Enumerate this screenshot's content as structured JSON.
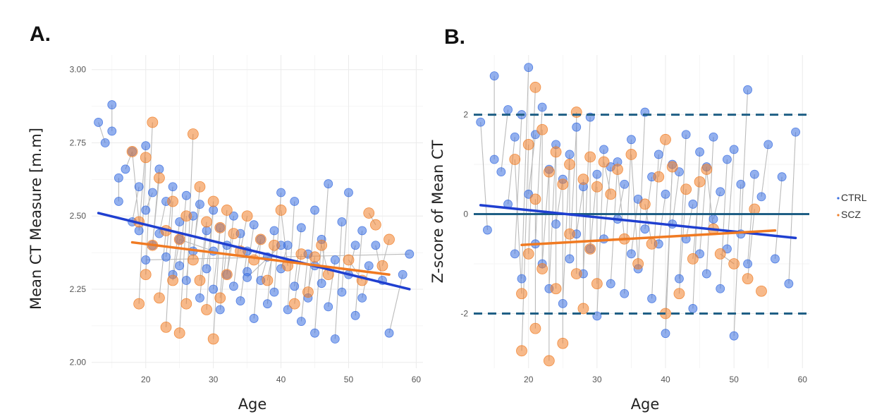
{
  "colors": {
    "CTRL": "#3b6fe0",
    "SCZ": "#f0802a",
    "CTRL_fit": "#1f3fd0",
    "SCZ_fit": "#f07a22",
    "ref": "#1f5f85",
    "link": "#bbbbbb",
    "grid": "#ebebeb"
  },
  "legend": {
    "items": [
      {
        "key": "CTRL",
        "label": "CTRL"
      },
      {
        "key": "SCZ",
        "label": "SCZ"
      }
    ],
    "placement": "right"
  },
  "chart_data": [
    {
      "type": "scatter",
      "panel_label": "A.",
      "xlabel": "Age",
      "ylabel": "Mean CT Measure [m.m]",
      "xlim": [
        12,
        61
      ],
      "ylim": [
        1.98,
        3.05
      ],
      "xticks": [
        "20",
        "30",
        "40",
        "50",
        "60"
      ],
      "yticks": [
        "2.00",
        "2.25",
        "2.50",
        "2.75",
        "3.00"
      ],
      "grid": true,
      "series": [
        {
          "name": "CTRL",
          "x": [
            13,
            14,
            15,
            15,
            16,
            16,
            17,
            18,
            18,
            19,
            19,
            20,
            20,
            21,
            21,
            22,
            22,
            23,
            23,
            24,
            24,
            25,
            25,
            26,
            26,
            27,
            27,
            28,
            28,
            29,
            29,
            30,
            30,
            31,
            31,
            32,
            32,
            33,
            33,
            34,
            34,
            35,
            35,
            36,
            36,
            37,
            37,
            38,
            38,
            39,
            39,
            40,
            40,
            41,
            41,
            42,
            42,
            43,
            43,
            44,
            44,
            45,
            45,
            46,
            46,
            47,
            47,
            48,
            48,
            49,
            49,
            50,
            50,
            51,
            51,
            52,
            52,
            53,
            54,
            55,
            56,
            58,
            59,
            20,
            25,
            30,
            35,
            40,
            45
          ],
          "y": [
            2.82,
            2.75,
            2.88,
            2.79,
            2.63,
            2.55,
            2.66,
            2.72,
            2.48,
            2.6,
            2.45,
            2.74,
            2.52,
            2.58,
            2.4,
            2.66,
            2.44,
            2.55,
            2.36,
            2.6,
            2.3,
            2.48,
            2.33,
            2.57,
            2.28,
            2.5,
            2.38,
            2.54,
            2.22,
            2.45,
            2.32,
            2.52,
            2.25,
            2.46,
            2.18,
            2.4,
            2.3,
            2.5,
            2.26,
            2.44,
            2.21,
            2.38,
            2.31,
            2.47,
            2.15,
            2.42,
            2.28,
            2.36,
            2.2,
            2.45,
            2.24,
            2.58,
            2.32,
            2.4,
            2.18,
            2.55,
            2.26,
            2.46,
            2.14,
            2.37,
            2.22,
            2.52,
            2.1,
            2.42,
            2.27,
            2.61,
            2.19,
            2.35,
            2.08,
            2.48,
            2.24,
            2.58,
            2.3,
            2.4,
            2.16,
            2.45,
            2.22,
            2.33,
            2.4,
            2.28,
            2.1,
            2.3,
            2.37,
            2.35,
            2.42,
            2.38,
            2.29,
            2.4,
            2.33
          ]
        },
        {
          "name": "SCZ",
          "x": [
            18,
            19,
            19,
            20,
            20,
            21,
            21,
            22,
            22,
            23,
            23,
            24,
            24,
            25,
            25,
            26,
            26,
            27,
            27,
            28,
            28,
            29,
            29,
            30,
            30,
            31,
            31,
            32,
            32,
            33,
            34,
            35,
            36,
            37,
            38,
            39,
            40,
            41,
            42,
            43,
            44,
            45,
            46,
            47,
            50,
            52,
            53,
            54,
            55,
            56
          ],
          "y": [
            2.72,
            2.48,
            2.2,
            2.7,
            2.3,
            2.82,
            2.4,
            2.63,
            2.22,
            2.45,
            2.12,
            2.55,
            2.28,
            2.42,
            2.1,
            2.5,
            2.2,
            2.78,
            2.35,
            2.6,
            2.28,
            2.48,
            2.18,
            2.55,
            2.08,
            2.46,
            2.22,
            2.52,
            2.3,
            2.44,
            2.38,
            2.5,
            2.35,
            2.42,
            2.28,
            2.4,
            2.52,
            2.33,
            2.2,
            2.37,
            2.24,
            2.36,
            2.4,
            2.3,
            2.35,
            2.28,
            2.51,
            2.47,
            2.33,
            2.42
          ]
        }
      ],
      "fits": [
        {
          "name": "CTRL",
          "x": [
            13,
            59
          ],
          "y": [
            2.51,
            2.25
          ]
        },
        {
          "name": "SCZ",
          "x": [
            18,
            56
          ],
          "y": [
            2.41,
            2.3
          ]
        }
      ]
    },
    {
      "type": "scatter",
      "panel_label": "B.",
      "xlabel": "Age",
      "ylabel": "Z-score of Mean CT",
      "xlim": [
        12,
        61
      ],
      "ylim": [
        -3.1,
        3.2
      ],
      "xticks": [
        "20",
        "30",
        "40",
        "50",
        "60"
      ],
      "yticks": [
        "-2",
        "0",
        "2"
      ],
      "grid": true,
      "reference_lines": [
        {
          "y": 2,
          "style": "dashed"
        },
        {
          "y": 0,
          "style": "solid"
        },
        {
          "y": -2,
          "style": "dashed"
        }
      ],
      "series": [
        {
          "name": "CTRL",
          "x": [
            13,
            14,
            15,
            15,
            16,
            17,
            17,
            18,
            18,
            19,
            19,
            20,
            20,
            21,
            21,
            22,
            22,
            23,
            23,
            24,
            24,
            25,
            25,
            26,
            26,
            27,
            27,
            28,
            28,
            29,
            29,
            30,
            30,
            31,
            31,
            32,
            32,
            33,
            33,
            34,
            34,
            35,
            35,
            36,
            36,
            37,
            37,
            38,
            38,
            39,
            39,
            40,
            40,
            41,
            41,
            42,
            42,
            43,
            43,
            44,
            44,
            45,
            45,
            46,
            46,
            47,
            47,
            48,
            48,
            49,
            49,
            50,
            50,
            51,
            51,
            52,
            52,
            53,
            54,
            55,
            56,
            57,
            58,
            59
          ],
          "y": [
            1.85,
            -0.32,
            2.78,
            1.1,
            0.85,
            2.1,
            0.2,
            1.55,
            -0.8,
            2.0,
            -1.3,
            2.95,
            0.4,
            1.6,
            -0.6,
            2.15,
            -1.0,
            0.9,
            -1.5,
            1.4,
            -0.2,
            0.7,
            -1.8,
            1.2,
            -0.9,
            1.75,
            -0.4,
            0.55,
            -1.2,
            1.95,
            -0.7,
            0.8,
            -2.05,
            1.3,
            -0.5,
            0.95,
            -1.4,
            1.05,
            -0.1,
            0.6,
            -1.6,
            1.5,
            -0.8,
            0.3,
            -1.1,
            2.05,
            -0.3,
            0.75,
            -1.7,
            1.2,
            -0.6,
            0.4,
            -2.4,
            1.0,
            -0.2,
            0.85,
            -1.3,
            1.6,
            -0.5,
            0.2,
            -1.9,
            1.25,
            -0.8,
            0.95,
            -1.2,
            1.55,
            -0.1,
            0.45,
            -1.5,
            1.1,
            -0.7,
            1.3,
            -2.45,
            0.6,
            -0.4,
            2.5,
            -1.0,
            0.8,
            0.35,
            1.4,
            -0.9,
            0.75,
            -1.4,
            1.65
          ]
        },
        {
          "name": "SCZ",
          "x": [
            18,
            19,
            19,
            20,
            20,
            21,
            21,
            21,
            22,
            22,
            23,
            23,
            24,
            24,
            25,
            25,
            26,
            26,
            27,
            27,
            28,
            28,
            29,
            29,
            30,
            30,
            31,
            32,
            33,
            34,
            35,
            36,
            37,
            38,
            39,
            40,
            40,
            41,
            42,
            43,
            44,
            45,
            46,
            47,
            48,
            50,
            52,
            53,
            54
          ],
          "y": [
            1.1,
            -1.6,
            -2.75,
            1.4,
            -0.8,
            2.55,
            0.3,
            -2.3,
            1.7,
            -1.1,
            0.85,
            -2.95,
            1.25,
            -1.5,
            0.6,
            -2.6,
            1.0,
            -0.4,
            2.05,
            -1.2,
            0.7,
            -1.9,
            1.15,
            -0.7,
            0.55,
            -1.4,
            1.05,
            0.4,
            0.9,
            -0.5,
            1.2,
            -1.0,
            0.2,
            -0.6,
            0.75,
            1.5,
            -2.0,
            0.95,
            -1.6,
            0.5,
            -0.9,
            0.65,
            0.9,
            -0.3,
            -0.8,
            -1.0,
            -1.3,
            0.1,
            -1.55
          ]
        }
      ],
      "fits": [
        {
          "name": "CTRL",
          "x": [
            13,
            59
          ],
          "y": [
            0.18,
            -0.48
          ]
        },
        {
          "name": "SCZ",
          "x": [
            19,
            56
          ],
          "y": [
            -0.62,
            -0.33
          ]
        }
      ]
    }
  ]
}
